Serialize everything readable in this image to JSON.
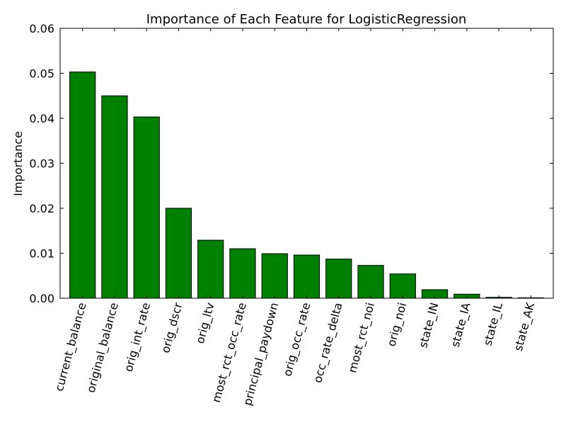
{
  "chart_data": {
    "type": "bar",
    "title": "Importance of Each Feature for LogisticRegression",
    "xlabel": "",
    "ylabel": "Importance",
    "ylim": [
      0,
      0.06
    ],
    "yticks": [
      "0.00",
      "0.01",
      "0.02",
      "0.03",
      "0.04",
      "0.05",
      "0.06"
    ],
    "grid": false,
    "legend": "none",
    "bar_color": "#008000",
    "categories": [
      "current_balance",
      "original_balance",
      "orig_int_rate",
      "orig_dscr",
      "orig_ltv",
      "most_rct_occ_rate",
      "principal_paydown",
      "orig_occ_rate",
      "occ_rate_delta",
      "most_rct_noi",
      "orig_noi",
      "state_IN",
      "state_IA",
      "state_IL",
      "state_AK"
    ],
    "values": [
      0.0503,
      0.045,
      0.0403,
      0.02,
      0.0129,
      0.011,
      0.0099,
      0.0096,
      0.0087,
      0.0073,
      0.0054,
      0.0019,
      0.0009,
      0.0002,
      0.0001
    ]
  }
}
